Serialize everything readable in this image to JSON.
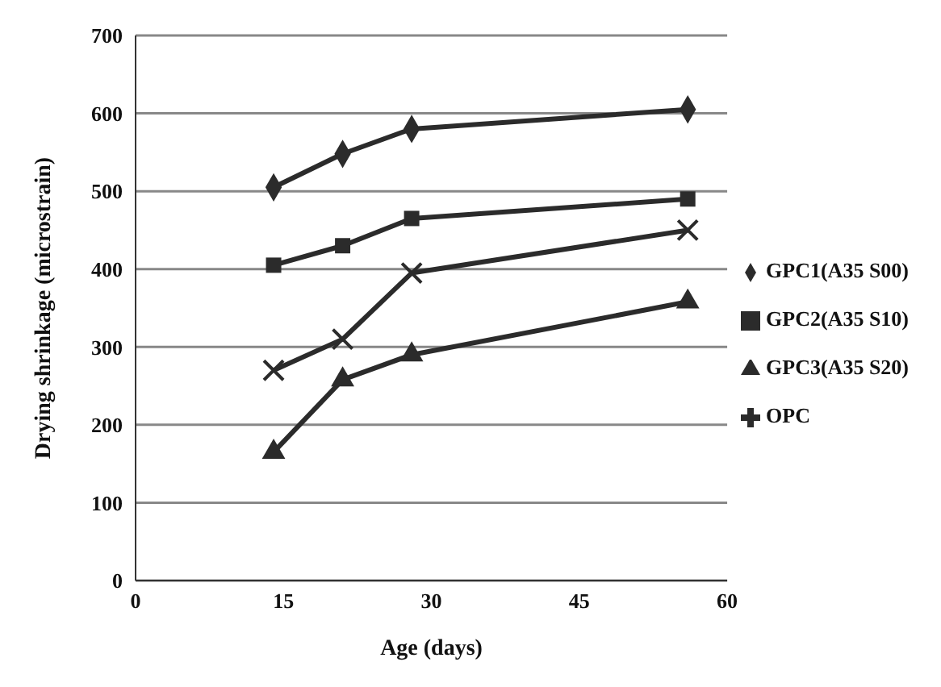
{
  "chart_data": {
    "type": "line",
    "xlabel": "Age (days)",
    "ylabel": "Drying shrinkage (microstrain)",
    "x": [
      14,
      21,
      28,
      56
    ],
    "series": [
      {
        "name": "GPC1(A35 S00)",
        "color": "#2b2b2b",
        "marker": "diamond",
        "values": [
          505,
          548,
          580,
          605
        ]
      },
      {
        "name": "GPC2(A35 S10)",
        "color": "#2b2b2b",
        "marker": "square",
        "values": [
          405,
          430,
          465,
          490
        ]
      },
      {
        "name": "GPC3(A35 S20)",
        "color": "#2b2b2b",
        "marker": "triangle",
        "values": [
          165,
          258,
          290,
          358
        ]
      },
      {
        "name": "OPC",
        "color": "#2b2b2b",
        "marker": "cross",
        "values": [
          270,
          310,
          395,
          450
        ]
      }
    ],
    "xlim": [
      0,
      60
    ],
    "xticks": [
      0,
      15,
      30,
      45,
      60
    ],
    "ylim": [
      0,
      700
    ],
    "yticks": [
      0,
      100,
      200,
      300,
      400,
      500,
      600,
      700
    ],
    "grid": "y",
    "legend": "right",
    "line_style": "solid"
  }
}
